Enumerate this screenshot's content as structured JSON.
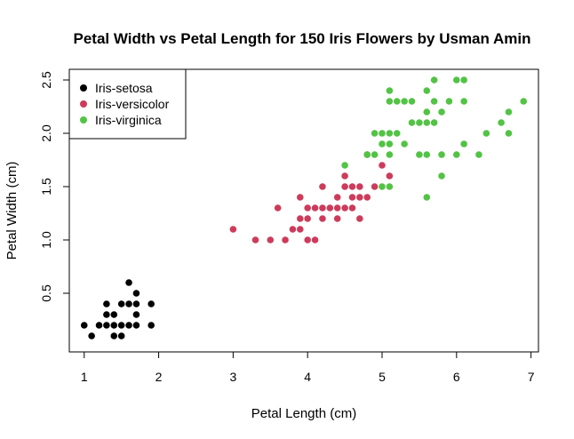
{
  "chart_data": {
    "type": "scatter",
    "title": "Petal Width vs Petal Length for 150 Iris Flowers by Usman Amin",
    "xlabel": "Petal Length (cm)",
    "ylabel": "Petal Width (cm)",
    "xlim": [
      0.8,
      7.1
    ],
    "ylim": [
      -0.05,
      2.6
    ],
    "x_ticks": [
      1,
      2,
      3,
      4,
      5,
      6,
      7
    ],
    "y_ticks": [
      0.5,
      1.0,
      1.5,
      2.0,
      2.5
    ],
    "x_tick_labels": [
      "1",
      "2",
      "3",
      "4",
      "5",
      "6",
      "7"
    ],
    "y_tick_labels": [
      "0.5",
      "1.0",
      "1.5",
      "2.0",
      "2.5"
    ],
    "grid": false,
    "legend_position": "top-left",
    "series": [
      {
        "name": "Iris-setosa",
        "color": "#000000",
        "points": [
          [
            1.0,
            0.2
          ],
          [
            1.1,
            0.1
          ],
          [
            1.2,
            0.2
          ],
          [
            1.3,
            0.2
          ],
          [
            1.3,
            0.3
          ],
          [
            1.3,
            0.4
          ],
          [
            1.4,
            0.1
          ],
          [
            1.4,
            0.2
          ],
          [
            1.4,
            0.3
          ],
          [
            1.5,
            0.1
          ],
          [
            1.5,
            0.2
          ],
          [
            1.5,
            0.4
          ],
          [
            1.6,
            0.2
          ],
          [
            1.6,
            0.4
          ],
          [
            1.6,
            0.6
          ],
          [
            1.7,
            0.2
          ],
          [
            1.7,
            0.3
          ],
          [
            1.7,
            0.4
          ],
          [
            1.7,
            0.5
          ],
          [
            1.9,
            0.2
          ],
          [
            1.9,
            0.4
          ]
        ]
      },
      {
        "name": "Iris-versicolor",
        "color": "#CD3B5B",
        "points": [
          [
            3.0,
            1.1
          ],
          [
            3.3,
            1.0
          ],
          [
            3.5,
            1.0
          ],
          [
            3.6,
            1.3
          ],
          [
            3.7,
            1.0
          ],
          [
            3.8,
            1.1
          ],
          [
            3.9,
            1.1
          ],
          [
            3.9,
            1.2
          ],
          [
            3.9,
            1.4
          ],
          [
            4.0,
            1.0
          ],
          [
            4.0,
            1.2
          ],
          [
            4.0,
            1.3
          ],
          [
            4.1,
            1.0
          ],
          [
            4.1,
            1.3
          ],
          [
            4.2,
            1.2
          ],
          [
            4.2,
            1.3
          ],
          [
            4.2,
            1.5
          ],
          [
            4.3,
            1.3
          ],
          [
            4.4,
            1.2
          ],
          [
            4.4,
            1.3
          ],
          [
            4.4,
            1.4
          ],
          [
            4.5,
            1.3
          ],
          [
            4.5,
            1.5
          ],
          [
            4.5,
            1.6
          ],
          [
            4.6,
            1.3
          ],
          [
            4.6,
            1.4
          ],
          [
            4.6,
            1.5
          ],
          [
            4.7,
            1.2
          ],
          [
            4.7,
            1.4
          ],
          [
            4.7,
            1.5
          ],
          [
            4.8,
            1.4
          ],
          [
            4.8,
            1.8
          ],
          [
            4.9,
            1.5
          ],
          [
            5.0,
            1.7
          ],
          [
            5.1,
            1.6
          ]
        ]
      },
      {
        "name": "Iris-virginica",
        "color": "#52C345",
        "points": [
          [
            4.5,
            1.7
          ],
          [
            4.8,
            1.8
          ],
          [
            4.9,
            1.8
          ],
          [
            4.9,
            2.0
          ],
          [
            5.0,
            1.5
          ],
          [
            5.0,
            1.9
          ],
          [
            5.0,
            2.0
          ],
          [
            5.1,
            1.5
          ],
          [
            5.1,
            1.8
          ],
          [
            5.1,
            1.9
          ],
          [
            5.1,
            2.0
          ],
          [
            5.1,
            2.3
          ],
          [
            5.1,
            2.4
          ],
          [
            5.2,
            2.0
          ],
          [
            5.2,
            2.3
          ],
          [
            5.3,
            1.9
          ],
          [
            5.3,
            2.3
          ],
          [
            5.4,
            2.1
          ],
          [
            5.4,
            2.3
          ],
          [
            5.5,
            1.8
          ],
          [
            5.5,
            2.1
          ],
          [
            5.6,
            1.4
          ],
          [
            5.6,
            1.8
          ],
          [
            5.6,
            2.1
          ],
          [
            5.6,
            2.2
          ],
          [
            5.6,
            2.4
          ],
          [
            5.7,
            2.1
          ],
          [
            5.7,
            2.3
          ],
          [
            5.7,
            2.5
          ],
          [
            5.8,
            1.6
          ],
          [
            5.8,
            1.8
          ],
          [
            5.8,
            2.2
          ],
          [
            5.9,
            2.3
          ],
          [
            6.0,
            1.8
          ],
          [
            6.0,
            2.5
          ],
          [
            6.1,
            1.9
          ],
          [
            6.1,
            2.3
          ],
          [
            6.1,
            2.5
          ],
          [
            6.3,
            1.8
          ],
          [
            6.4,
            2.0
          ],
          [
            6.6,
            2.1
          ],
          [
            6.7,
            2.0
          ],
          [
            6.7,
            2.2
          ],
          [
            6.9,
            2.3
          ]
        ]
      }
    ]
  }
}
